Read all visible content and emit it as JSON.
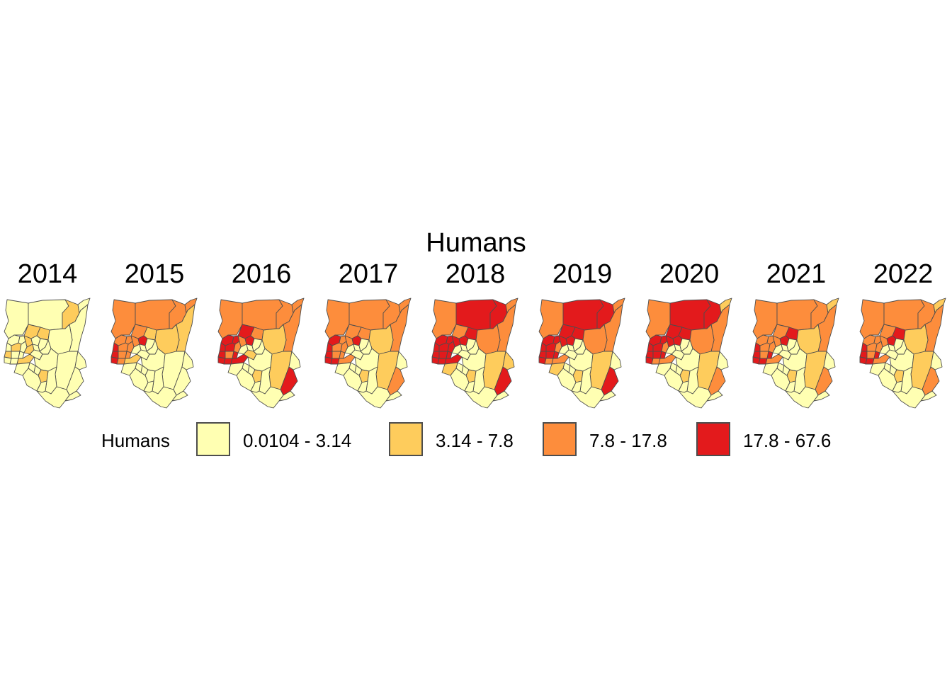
{
  "title": "Humans",
  "panels": [
    {
      "year": "2014",
      "classes": [
        1,
        1,
        2,
        1,
        1,
        2,
        2,
        1,
        1,
        1,
        2,
        1,
        1,
        2,
        1,
        2,
        1,
        1,
        1,
        1,
        2,
        1,
        1,
        1,
        1,
        2,
        1,
        1,
        1,
        1,
        2,
        1,
        1,
        1,
        1,
        1,
        1,
        1,
        1
      ]
    },
    {
      "year": "2015",
      "classes": [
        3,
        3,
        3,
        3,
        2,
        3,
        2,
        2,
        3,
        3,
        3,
        4,
        4,
        3,
        3,
        1,
        1,
        1,
        1,
        1,
        4,
        3,
        3,
        4,
        3,
        2,
        1,
        1,
        1,
        1,
        1,
        1,
        1,
        1,
        1,
        1,
        1,
        1,
        1
      ]
    },
    {
      "year": "2016",
      "classes": [
        3,
        3,
        3,
        3,
        3,
        4,
        3,
        2,
        4,
        4,
        3,
        4,
        4,
        4,
        3,
        1,
        1,
        1,
        1,
        2,
        4,
        3,
        4,
        4,
        4,
        4,
        1,
        1,
        1,
        1,
        2,
        2,
        1,
        1,
        4,
        1,
        1,
        1,
        1
      ]
    },
    {
      "year": "2017",
      "classes": [
        3,
        3,
        3,
        3,
        3,
        3,
        3,
        2,
        4,
        3,
        3,
        4,
        4,
        3,
        3,
        1,
        1,
        1,
        1,
        1,
        4,
        3,
        3,
        4,
        4,
        3,
        1,
        1,
        1,
        1,
        2,
        2,
        1,
        1,
        3,
        1,
        1,
        1,
        1
      ]
    },
    {
      "year": "2018",
      "classes": [
        3,
        4,
        4,
        3,
        3,
        3,
        4,
        3,
        4,
        4,
        4,
        4,
        4,
        4,
        4,
        1,
        1,
        1,
        1,
        1,
        4,
        4,
        4,
        4,
        4,
        4,
        1,
        1,
        2,
        1,
        2,
        2,
        1,
        2,
        4,
        1,
        1,
        1,
        1
      ]
    },
    {
      "year": "2019",
      "classes": [
        3,
        4,
        4,
        3,
        3,
        4,
        4,
        3,
        4,
        4,
        4,
        4,
        4,
        4,
        3,
        1,
        1,
        1,
        1,
        1,
        4,
        4,
        4,
        4,
        3,
        3,
        1,
        1,
        2,
        1,
        2,
        2,
        1,
        1,
        4,
        1,
        1,
        1,
        1
      ]
    },
    {
      "year": "2020",
      "classes": [
        3,
        4,
        4,
        2,
        3,
        4,
        4,
        3,
        4,
        4,
        4,
        4,
        4,
        4,
        3,
        1,
        1,
        1,
        1,
        1,
        4,
        4,
        4,
        4,
        3,
        3,
        1,
        1,
        1,
        1,
        2,
        2,
        1,
        1,
        3,
        1,
        1,
        1,
        1
      ]
    },
    {
      "year": "2021",
      "classes": [
        3,
        3,
        3,
        2,
        3,
        3,
        4,
        2,
        3,
        3,
        3,
        4,
        4,
        3,
        3,
        1,
        1,
        1,
        1,
        1,
        4,
        3,
        4,
        4,
        4,
        3,
        1,
        1,
        1,
        1,
        2,
        2,
        1,
        1,
        3,
        1,
        1,
        1,
        1
      ]
    },
    {
      "year": "2022",
      "classes": [
        3,
        3,
        3,
        2,
        3,
        3,
        4,
        2,
        3,
        3,
        3,
        4,
        4,
        3,
        3,
        1,
        1,
        1,
        1,
        1,
        4,
        3,
        4,
        4,
        4,
        3,
        1,
        1,
        1,
        1,
        2,
        2,
        1,
        1,
        3,
        1,
        1,
        1,
        1
      ]
    }
  ],
  "legend": {
    "title": "Humans",
    "items": [
      {
        "label": "0.0104 - 3.14",
        "color": "#ffffb2"
      },
      {
        "label": "3.14 - 7.8",
        "color": "#fecc5c"
      },
      {
        "label": "7.8 - 17.8",
        "color": "#fd8d3c"
      },
      {
        "label": "17.8 - 67.6",
        "color": "#e31a1c"
      }
    ]
  },
  "border_color": "#4d4d4d"
}
